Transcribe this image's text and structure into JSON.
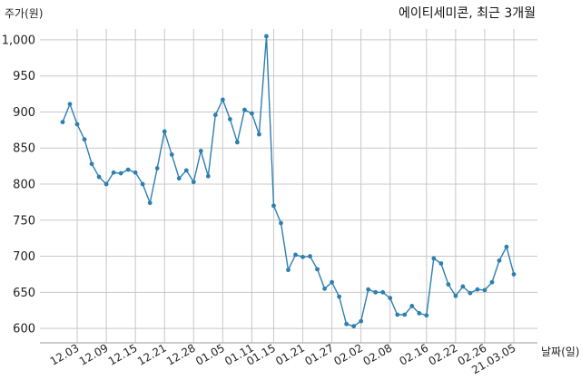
{
  "chart_data": {
    "type": "line",
    "title": "에이티세미콘, 최근 3개월",
    "xlabel": "날짜(일)",
    "ylabel": "주가(원)",
    "color": "#2e7fb0",
    "ylim": [
      580,
      1015
    ],
    "yticks": [
      600,
      650,
      700,
      750,
      800,
      850,
      900,
      950,
      1000
    ],
    "ytick_labels": [
      "600",
      "650",
      "700",
      "750",
      "800",
      "850",
      "900",
      "950",
      "1,000"
    ],
    "xtick_labels": [
      "12.03",
      "12.09",
      "12.15",
      "12.21",
      "12.28",
      "01.05",
      "01.11",
      "01.15",
      "01.21",
      "01.27",
      "02.02",
      "02.08",
      "02.16",
      "02.22",
      "02.26",
      "21.03.05"
    ],
    "xtick_index": [
      2,
      6,
      10,
      14,
      18,
      22,
      26,
      29,
      33,
      37,
      41,
      45,
      50,
      54,
      58,
      62
    ],
    "grid": true,
    "values": [
      886,
      911,
      883,
      862,
      828,
      810,
      800,
      816,
      815,
      820,
      816,
      800,
      774,
      822,
      873,
      841,
      808,
      819,
      803,
      846,
      811,
      896,
      917,
      890,
      858,
      903,
      898,
      869,
      1005,
      770,
      746,
      681,
      702,
      699,
      700,
      682,
      655,
      664,
      644,
      606,
      603,
      610,
      654,
      650,
      650,
      642,
      619,
      619,
      631,
      621,
      618,
      697,
      690,
      661,
      645,
      658,
      649,
      654,
      653,
      664,
      694,
      713,
      675
    ]
  }
}
